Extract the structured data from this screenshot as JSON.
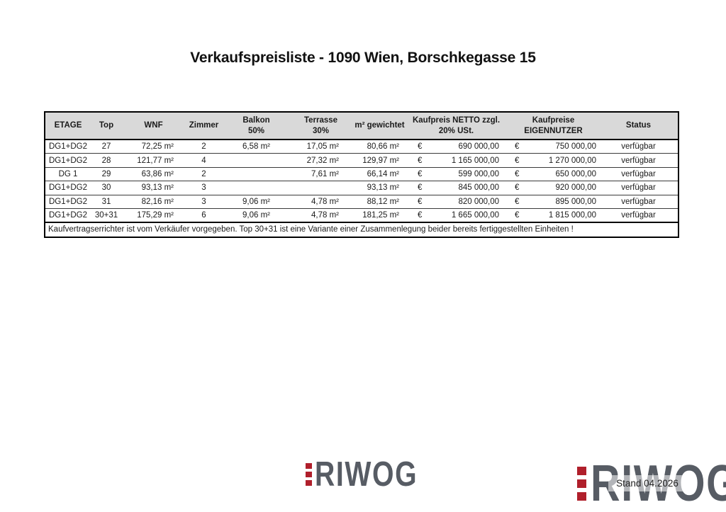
{
  "page": {
    "title": "Verkaufspreisliste - 1090 Wien, Borschkegasse 15"
  },
  "table": {
    "columns": [
      {
        "id": "etage",
        "label": "ETAGE"
      },
      {
        "id": "top",
        "label": "Top"
      },
      {
        "id": "wnf",
        "label": "WNF"
      },
      {
        "id": "zimmer",
        "label": "Zimmer"
      },
      {
        "id": "balkon",
        "label": "Balkon",
        "sub": "50%"
      },
      {
        "id": "terrasse",
        "label": "Terrasse",
        "sub": "30%"
      },
      {
        "id": "gewichtet",
        "label": "m² gewichtet"
      },
      {
        "id": "netto",
        "label": "Kaufpreis NETTO zzgl.",
        "sub": "20% USt.",
        "currency": true
      },
      {
        "id": "eigennutzer",
        "label": "Kaufpreise",
        "sub": "EIGENNUTZER",
        "currency": true
      },
      {
        "id": "status",
        "label": "Status"
      }
    ],
    "currency_symbol": "€",
    "rows": [
      {
        "etage": "DG1+DG2",
        "top": "27",
        "wnf": "72,25 m²",
        "zimmer": "2",
        "balkon": "6,58 m²",
        "terrasse": "17,05 m²",
        "gewichtet": "80,66 m²",
        "netto": "690 000,00",
        "eigennutzer": "750 000,00",
        "status": "verfügbar"
      },
      {
        "etage": "DG1+DG2",
        "top": "28",
        "wnf": "121,77 m²",
        "zimmer": "4",
        "balkon": "",
        "terrasse": "27,32 m²",
        "gewichtet": "129,97 m²",
        "netto": "1 165 000,00",
        "eigennutzer": "1 270 000,00",
        "status": "verfügbar"
      },
      {
        "etage": "DG 1",
        "top": "29",
        "wnf": "63,86 m²",
        "zimmer": "2",
        "balkon": "",
        "terrasse": "7,61 m²",
        "gewichtet": "66,14 m²",
        "netto": "599 000,00",
        "eigennutzer": "650 000,00",
        "status": "verfügbar"
      },
      {
        "etage": "DG1+DG2",
        "top": "30",
        "wnf": "93,13 m²",
        "zimmer": "3",
        "balkon": "",
        "terrasse": "",
        "gewichtet": "93,13 m²",
        "netto": "845 000,00",
        "eigennutzer": "920 000,00",
        "status": "verfügbar"
      },
      {
        "etage": "DG1+DG2",
        "top": "31",
        "wnf": "82,16 m²",
        "zimmer": "3",
        "balkon": "9,06 m²",
        "terrasse": "4,78 m²",
        "gewichtet": "88,12 m²",
        "netto": "820 000,00",
        "eigennutzer": "895 000,00",
        "status": "verfügbar"
      },
      {
        "etage": "DG1+DG2",
        "top": "30+31",
        "wnf": "175,29 m²",
        "zimmer": "6",
        "balkon": "9,06 m²",
        "terrasse": "4,78 m²",
        "gewichtet": "181,25 m²",
        "netto": "1 665 000,00",
        "eigennutzer": "1 815 000,00",
        "status": "verfügbar"
      }
    ],
    "note": "Kaufvertragserrichter ist vom Verkäufer vorgegeben. Top 30+31 ist eine Variante einer Zusammenlegung beider bereits fertiggestellten Einheiten !"
  },
  "footer": {
    "logo_text": "RIWOG",
    "stamp": "Stand 04.2026"
  },
  "colors": {
    "logo_red": "#b01f2b",
    "logo_gray": "#575c64",
    "header_bg": "#d9d9d9"
  }
}
